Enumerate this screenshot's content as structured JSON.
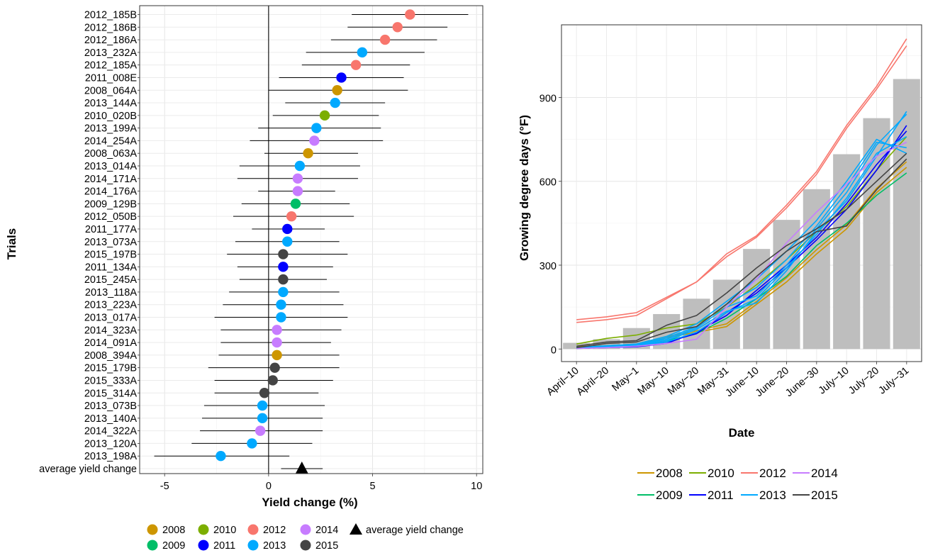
{
  "chart_data": [
    {
      "type": "forest",
      "xlabel": "Yield change (%)",
      "ylabel": "Trials",
      "xlim": [
        -6.2,
        10.3
      ],
      "xticks": [
        -5,
        0,
        5,
        10
      ],
      "grid": true,
      "legend_placement": "bottom",
      "trials": [
        {
          "label": "2012_185B",
          "year": "2012",
          "est": 6.8,
          "lo": 4.0,
          "hi": 9.6
        },
        {
          "label": "2012_186B",
          "year": "2012",
          "est": 6.2,
          "lo": 3.8,
          "hi": 8.6
        },
        {
          "label": "2012_186A",
          "year": "2012",
          "est": 5.6,
          "lo": 3.0,
          "hi": 8.1
        },
        {
          "label": "2013_232A",
          "year": "2013",
          "est": 4.5,
          "lo": 1.8,
          "hi": 7.5
        },
        {
          "label": "2012_185A",
          "year": "2012",
          "est": 4.2,
          "lo": 1.6,
          "hi": 6.8
        },
        {
          "label": "2011_008E",
          "year": "2011",
          "est": 3.5,
          "lo": 0.5,
          "hi": 6.5
        },
        {
          "label": "2008_064A",
          "year": "2008",
          "est": 3.3,
          "lo": 0.0,
          "hi": 6.7
        },
        {
          "label": "2013_144A",
          "year": "2013",
          "est": 3.2,
          "lo": 0.8,
          "hi": 5.6
        },
        {
          "label": "2010_020B",
          "year": "2010",
          "est": 2.7,
          "lo": 0.2,
          "hi": 5.3
        },
        {
          "label": "2013_199A",
          "year": "2013",
          "est": 2.3,
          "lo": -0.5,
          "hi": 5.4
        },
        {
          "label": "2014_254A",
          "year": "2014",
          "est": 2.2,
          "lo": -0.9,
          "hi": 5.5
        },
        {
          "label": "2008_063A",
          "year": "2008",
          "est": 1.9,
          "lo": -0.2,
          "hi": 4.3
        },
        {
          "label": "2013_014A",
          "year": "2013",
          "est": 1.5,
          "lo": -1.4,
          "hi": 4.4
        },
        {
          "label": "2014_171A",
          "year": "2014",
          "est": 1.4,
          "lo": -1.5,
          "hi": 4.3
        },
        {
          "label": "2014_176A",
          "year": "2014",
          "est": 1.4,
          "lo": -0.5,
          "hi": 3.2
        },
        {
          "label": "2009_129B",
          "year": "2009",
          "est": 1.3,
          "lo": -1.3,
          "hi": 3.9
        },
        {
          "label": "2012_050B",
          "year": "2012",
          "est": 1.1,
          "lo": -1.7,
          "hi": 4.1
        },
        {
          "label": "2011_177A",
          "year": "2011",
          "est": 0.9,
          "lo": -0.8,
          "hi": 2.7
        },
        {
          "label": "2013_073A",
          "year": "2013",
          "est": 0.9,
          "lo": -1.6,
          "hi": 3.4
        },
        {
          "label": "2015_197B",
          "year": "2015",
          "est": 0.7,
          "lo": -2.0,
          "hi": 3.8
        },
        {
          "label": "2011_134A",
          "year": "2011",
          "est": 0.7,
          "lo": -1.5,
          "hi": 3.1
        },
        {
          "label": "2015_245A",
          "year": "2015",
          "est": 0.7,
          "lo": -1.4,
          "hi": 2.8
        },
        {
          "label": "2013_118A",
          "year": "2013",
          "est": 0.7,
          "lo": -1.9,
          "hi": 3.4
        },
        {
          "label": "2013_223A",
          "year": "2013",
          "est": 0.6,
          "lo": -2.2,
          "hi": 3.6
        },
        {
          "label": "2013_017A",
          "year": "2013",
          "est": 0.6,
          "lo": -2.6,
          "hi": 3.8
        },
        {
          "label": "2014_323A",
          "year": "2014",
          "est": 0.4,
          "lo": -2.3,
          "hi": 3.5
        },
        {
          "label": "2014_091A",
          "year": "2014",
          "est": 0.4,
          "lo": -2.3,
          "hi": 3.0
        },
        {
          "label": "2008_394A",
          "year": "2008",
          "est": 0.4,
          "lo": -2.4,
          "hi": 3.4
        },
        {
          "label": "2015_179B",
          "year": "2015",
          "est": 0.3,
          "lo": -2.9,
          "hi": 3.4
        },
        {
          "label": "2015_333A",
          "year": "2015",
          "est": 0.2,
          "lo": -2.6,
          "hi": 3.1
        },
        {
          "label": "2015_314A",
          "year": "2015",
          "est": -0.2,
          "lo": -2.6,
          "hi": 2.4
        },
        {
          "label": "2013_073B",
          "year": "2013",
          "est": -0.3,
          "lo": -3.1,
          "hi": 2.7
        },
        {
          "label": "2013_140A",
          "year": "2013",
          "est": -0.3,
          "lo": -3.2,
          "hi": 2.6
        },
        {
          "label": "2014_322A",
          "year": "2014",
          "est": -0.4,
          "lo": -3.3,
          "hi": 2.6
        },
        {
          "label": "2013_120A",
          "year": "2013",
          "est": -0.8,
          "lo": -3.7,
          "hi": 2.1
        },
        {
          "label": "2013_198A",
          "year": "2013",
          "est": -2.3,
          "lo": -5.5,
          "hi": 1.0
        }
      ],
      "average": {
        "label": "average yield change",
        "est": 1.6,
        "lo": 0.6,
        "hi": 2.6
      },
      "legend": [
        {
          "name": "2008",
          "color": "#CD9600"
        },
        {
          "name": "2010",
          "color": "#7CAE00"
        },
        {
          "name": "2012",
          "color": "#F8766D"
        },
        {
          "name": "2014",
          "color": "#C77CFF"
        },
        {
          "name": "average yield change",
          "shape": "triangle",
          "color": "#000000"
        },
        {
          "name": "2009",
          "color": "#00BE67"
        },
        {
          "name": "2011",
          "color": "#0000FF"
        },
        {
          "name": "2013",
          "color": "#00A9FF"
        },
        {
          "name": "2015",
          "color": "#444444"
        }
      ]
    },
    {
      "type": "line+bar",
      "xlabel": "Date",
      "ylabel": "Growing degree days (°F)",
      "categories": [
        "April−10",
        "April−20",
        "May−1",
        "May−10",
        "May−20",
        "May−31",
        "June−10",
        "June−20",
        "June−30",
        "July−10",
        "July−20",
        "July−31"
      ],
      "ylim": [
        -45,
        1160
      ],
      "yticks": [
        0,
        300,
        600,
        900
      ],
      "grid": true,
      "legend_placement": "bottom",
      "bar_color": "#BEBEBE",
      "bars": [
        22,
        35,
        75,
        125,
        180,
        248,
        358,
        462,
        572,
        697,
        826,
        966
      ],
      "series": [
        {
          "name": "2008",
          "color": "#CD9600",
          "lines": [
            [
              5,
              10,
              15,
              40,
              60,
              80,
              160,
              240,
              340,
              430,
              560,
              650
            ],
            [
              8,
              12,
              18,
              45,
              65,
              90,
              170,
              255,
              355,
              445,
              575,
              670
            ]
          ]
        },
        {
          "name": "2009",
          "color": "#00BE67",
          "lines": [
            [
              3,
              8,
              12,
              30,
              55,
              110,
              180,
              260,
              370,
              450,
              550,
              630
            ]
          ]
        },
        {
          "name": "2010",
          "color": "#7CAE00",
          "lines": [
            [
              18,
              38,
              50,
              75,
              90,
              150,
              230,
              320,
              420,
              510,
              640,
              760
            ]
          ]
        },
        {
          "name": "2011",
          "color": "#0000FF",
          "lines": [
            [
              3,
              6,
              10,
              25,
              55,
              130,
              200,
              290,
              390,
              500,
              640,
              800
            ],
            [
              2,
              5,
              8,
              20,
              60,
              120,
              210,
              300,
              400,
              520,
              660,
              780
            ]
          ]
        },
        {
          "name": "2012",
          "color": "#F8766D",
          "lines": [
            [
              105,
              115,
              130,
              185,
              240,
              340,
              405,
              515,
              635,
              800,
              940,
              1110
            ],
            [
              95,
              105,
              120,
              180,
              240,
              330,
              400,
              505,
              625,
              790,
              930,
              1085
            ]
          ]
        },
        {
          "name": "2013",
          "color": "#00A9FF",
          "lines": [
            [
              2,
              8,
              12,
              30,
              70,
              135,
              165,
              280,
              420,
              530,
              690,
              850
            ],
            [
              5,
              10,
              15,
              35,
              75,
              150,
              190,
              300,
              430,
              560,
              730,
              840
            ],
            [
              3,
              7,
              10,
              25,
              60,
              130,
              180,
              290,
              410,
              540,
              700,
              760
            ],
            [
              4,
              9,
              14,
              40,
              80,
              160,
              220,
              320,
              440,
              580,
              740,
              720
            ],
            [
              6,
              12,
              18,
              45,
              90,
              170,
              250,
              350,
              460,
              600,
              750,
              700
            ]
          ]
        },
        {
          "name": "2014",
          "color": "#C77CFF",
          "lines": [
            [
              2,
              5,
              10,
              20,
              35,
              150,
              250,
              380,
              490,
              590,
              690,
              740
            ]
          ]
        },
        {
          "name": "2015",
          "color": "#444444",
          "lines": [
            [
              10,
              25,
              30,
              85,
              120,
              200,
              290,
              370,
              430,
              500,
              600,
              700
            ],
            [
              5,
              20,
              25,
              60,
              80,
              160,
              260,
              350,
              420,
              440,
              570,
              680
            ]
          ]
        }
      ]
    }
  ]
}
